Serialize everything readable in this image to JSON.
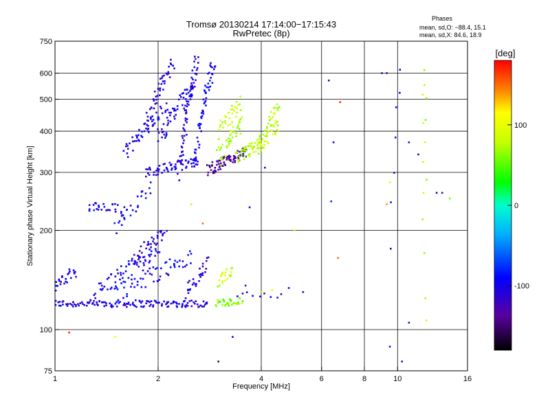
{
  "chart_data": {
    "type": "scatter",
    "title": "Tromsø 20130214 17:14:00−17:15:43",
    "subtitle": "RwPretec (8p)",
    "xlabel": "Frequency [MHz]",
    "ylabel": "Stationary phase Virtual Height [km]",
    "x_scale": "log",
    "y_scale": "log",
    "xlim": [
      1,
      16
    ],
    "ylim": [
      75,
      750
    ],
    "x_ticks": [
      1,
      2,
      4,
      6,
      8,
      10,
      16
    ],
    "y_ticks": [
      75,
      100,
      200,
      300,
      400,
      500,
      600,
      750
    ],
    "grid": true,
    "stats": {
      "heading": "Phases",
      "line_o": "mean, sd,O: −88.4, 15.1",
      "line_x": "mean, sd,X:  84.6, 18.9"
    },
    "colorbar": {
      "label": "[deg]",
      "range": [
        -180,
        180
      ],
      "ticks": [
        100,
        0,
        -100
      ]
    },
    "traces": [
      {
        "f_start": 1.0,
        "f_end": 2.8,
        "h_start": 120,
        "h_end": 120,
        "phase": -105,
        "n": 140,
        "jitter": 3
      },
      {
        "f_start": 1.0,
        "f_end": 1.15,
        "h_start": 135,
        "h_end": 150,
        "phase": -100,
        "n": 25,
        "jitter": 6
      },
      {
        "f_start": 1.3,
        "f_end": 2.0,
        "h_start": 128,
        "h_end": 175,
        "phase": -100,
        "n": 60,
        "jitter": 8
      },
      {
        "f_start": 1.5,
        "f_end": 2.5,
        "h_start": 130,
        "h_end": 165,
        "phase": -95,
        "n": 60,
        "jitter": 10
      },
      {
        "f_start": 1.7,
        "f_end": 2.1,
        "h_start": 160,
        "h_end": 200,
        "phase": -110,
        "n": 40,
        "jitter": 10
      },
      {
        "f_start": 2.4,
        "f_end": 2.8,
        "h_start": 125,
        "h_end": 160,
        "phase": -105,
        "n": 30,
        "jitter": 8
      },
      {
        "f_start": 1.25,
        "f_end": 1.6,
        "h_start": 235,
        "h_end": 230,
        "phase": -100,
        "n": 30,
        "jitter": 10
      },
      {
        "f_start": 1.5,
        "f_end": 1.9,
        "h_start": 205,
        "h_end": 270,
        "phase": -95,
        "n": 25,
        "jitter": 12
      },
      {
        "f_start": 1.85,
        "f_end": 2.6,
        "h_start": 300,
        "h_end": 325,
        "phase": -105,
        "n": 60,
        "jitter": 10
      },
      {
        "f_start": 1.6,
        "f_end": 2.1,
        "h_start": 340,
        "h_end": 470,
        "phase": -100,
        "n": 50,
        "jitter": 20
      },
      {
        "f_start": 1.85,
        "f_end": 2.2,
        "h_start": 430,
        "h_end": 640,
        "phase": -105,
        "n": 45,
        "jitter": 25
      },
      {
        "f_start": 2.0,
        "f_end": 2.5,
        "h_start": 380,
        "h_end": 540,
        "phase": -100,
        "n": 50,
        "jitter": 30
      },
      {
        "f_start": 2.3,
        "f_end": 2.6,
        "h_start": 300,
        "h_end": 650,
        "phase": -105,
        "n": 70,
        "jitter": 30
      },
      {
        "f_start": 2.55,
        "f_end": 2.9,
        "h_start": 310,
        "h_end": 640,
        "phase": -100,
        "n": 60,
        "jitter": 30
      },
      {
        "f_start": 2.8,
        "f_end": 3.6,
        "h_start": 305,
        "h_end": 345,
        "phase": -140,
        "n": 80,
        "jitter": 12
      },
      {
        "f_start": 3.0,
        "f_end": 3.5,
        "h_start": 330,
        "h_end": 420,
        "phase": 75,
        "n": 40,
        "jitter": 25
      },
      {
        "f_start": 3.0,
        "f_end": 3.5,
        "h_start": 400,
        "h_end": 490,
        "phase": 80,
        "n": 30,
        "jitter": 25
      },
      {
        "f_start": 3.4,
        "f_end": 4.0,
        "h_start": 330,
        "h_end": 370,
        "phase": 75,
        "n": 45,
        "jitter": 15
      },
      {
        "f_start": 3.9,
        "f_end": 4.5,
        "h_start": 360,
        "h_end": 420,
        "phase": 80,
        "n": 40,
        "jitter": 20
      },
      {
        "f_start": 4.1,
        "f_end": 4.5,
        "h_start": 410,
        "h_end": 480,
        "phase": 75,
        "n": 20,
        "jitter": 20
      },
      {
        "f_start": 2.95,
        "f_end": 3.5,
        "h_start": 120,
        "h_end": 122,
        "phase": 60,
        "n": 35,
        "jitter": 3
      },
      {
        "f_start": 3.0,
        "f_end": 3.3,
        "h_start": 140,
        "h_end": 150,
        "phase": 80,
        "n": 20,
        "jitter": 6
      },
      {
        "f_start": 3.4,
        "f_end": 4.8,
        "h_start": 130,
        "h_end": 130,
        "phase": -110,
        "n": 10,
        "jitter": 5
      },
      {
        "f_start": 9.5,
        "f_end": 10.2,
        "h_start": 90,
        "h_end": 600,
        "phase": -100,
        "n": 8,
        "jitter": 20
      },
      {
        "f_start": 12.0,
        "f_end": 12.0,
        "h_start": 95,
        "h_end": 600,
        "phase": 75,
        "n": 14,
        "jitter": 20
      }
    ],
    "scatter_points": [
      {
        "f": 6.3,
        "h": 570,
        "phase": -120
      },
      {
        "f": 6.5,
        "h": 370,
        "phase": -100
      },
      {
        "f": 6.4,
        "h": 245,
        "phase": -80
      },
      {
        "f": 6.7,
        "h": 165,
        "phase": 150
      },
      {
        "f": 6.8,
        "h": 490,
        "phase": 170
      },
      {
        "f": 9.0,
        "h": 600,
        "phase": -140
      },
      {
        "f": 9.3,
        "h": 600,
        "phase": -130
      },
      {
        "f": 9.5,
        "h": 280,
        "phase": 90
      },
      {
        "f": 9.3,
        "h": 240,
        "phase": 140
      },
      {
        "f": 10.8,
        "h": 370,
        "phase": -110
      },
      {
        "f": 11.5,
        "h": 340,
        "phase": -120
      },
      {
        "f": 13.0,
        "h": 260,
        "phase": -110
      },
      {
        "f": 13.5,
        "h": 260,
        "phase": -130
      },
      {
        "f": 14.2,
        "h": 250,
        "phase": 60
      },
      {
        "f": 10.3,
        "h": 80,
        "phase": -140
      },
      {
        "f": 10.8,
        "h": 105,
        "phase": -120
      },
      {
        "f": 3.0,
        "h": 80,
        "phase": -150
      },
      {
        "f": 3.3,
        "h": 95,
        "phase": -90
      },
      {
        "f": 2.5,
        "h": 240,
        "phase": 80
      },
      {
        "f": 2.7,
        "h": 210,
        "phase": 150
      },
      {
        "f": 1.1,
        "h": 98,
        "phase": 170
      },
      {
        "f": 1.5,
        "h": 95,
        "phase": 110
      },
      {
        "f": 5.0,
        "h": 200,
        "phase": 120
      },
      {
        "f": 5.3,
        "h": 130,
        "phase": -110
      },
      {
        "f": 4.1,
        "h": 310,
        "phase": -120
      },
      {
        "f": 3.7,
        "h": 235,
        "phase": -100
      },
      {
        "f": 4.0,
        "h": 130,
        "phase": 60
      },
      {
        "f": 4.3,
        "h": 132,
        "phase": 100
      },
      {
        "f": 3.6,
        "h": 136,
        "phase": -130
      }
    ]
  }
}
